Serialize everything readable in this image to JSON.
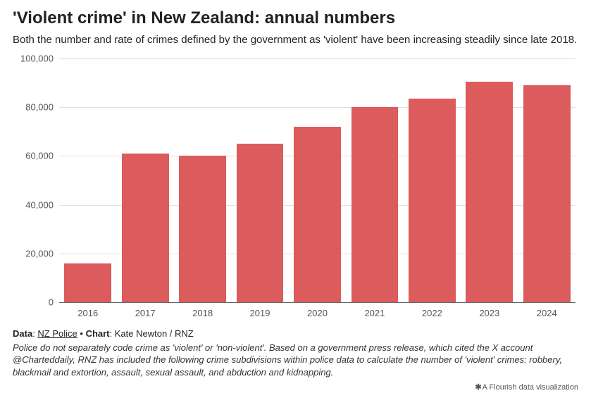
{
  "title": "'Violent crime' in New Zealand: annual numbers",
  "subtitle": "Both the number and rate of crimes defined by the government as 'violent' have been increasing steadily since late 2018.",
  "chart": {
    "type": "bar",
    "categories": [
      "2016",
      "2017",
      "2018",
      "2019",
      "2020",
      "2021",
      "2022",
      "2023",
      "2024"
    ],
    "values": [
      16000,
      61000,
      60000,
      65000,
      72000,
      80000,
      83500,
      90500,
      89000
    ],
    "bar_color": "#dc5b5c",
    "background_color": "#ffffff",
    "grid_color": "#dedede",
    "baseline_color": "#666666",
    "ylim": [
      0,
      100000
    ],
    "ytick_step": 20000,
    "ytick_labels": [
      "0",
      "20,000",
      "40,000",
      "60,000",
      "80,000",
      "100,000"
    ],
    "label_color": "#555555",
    "label_fontsize": 13,
    "bar_width": 0.82
  },
  "footer": {
    "data_label": "Data",
    "data_source": "NZ Police",
    "sep": " • ",
    "chart_label": "Chart",
    "chart_credit": "Kate Newton / RNZ",
    "footnote": "Police do not separately code crime as 'violent' or 'non-violent'. Based on a government press release, which cited the X account @Charteddaily, RNZ has included the following crime subdivisions within police data to calculate the number of 'violent' crimes: robbery, blackmail and extortion, assault, sexual assault, and abduction and kidnapping.",
    "credit_text": "A Flourish data visualization"
  }
}
